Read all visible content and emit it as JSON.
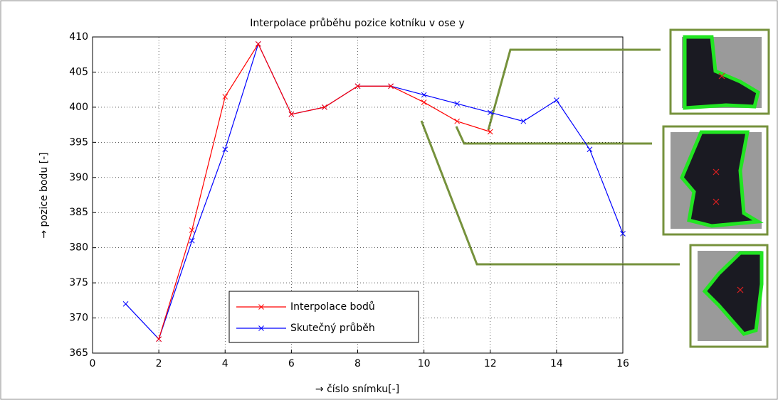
{
  "chart_data": {
    "type": "line",
    "title": "Interpolace průběhu pozice kotníku v ose y",
    "xlabel": "→ číslo snímku[-]",
    "ylabel": "→ pozice bodu [-]",
    "x": [
      1,
      2,
      3,
      4,
      5,
      6,
      7,
      8,
      9,
      10,
      11,
      12,
      13,
      14,
      15,
      16
    ],
    "series": [
      {
        "name": "Interpolace bodů",
        "color": "#ff0000",
        "values": [
          null,
          367,
          382.5,
          401.5,
          409,
          399,
          400,
          403,
          403,
          400.7,
          398,
          396.5,
          null,
          null,
          null,
          null
        ]
      },
      {
        "name": "Skutečný průběh",
        "color": "#0000ff",
        "values": [
          372,
          367,
          381,
          394,
          409,
          399,
          400,
          403,
          403,
          401.75,
          400.5,
          399.25,
          398,
          401,
          394,
          382
        ]
      }
    ],
    "xlim": [
      0,
      16
    ],
    "xticks": [
      0,
      2,
      4,
      6,
      8,
      10,
      12,
      14,
      16
    ],
    "ylim": [
      365,
      410
    ],
    "yticks": [
      365,
      370,
      375,
      380,
      385,
      390,
      395,
      400,
      405,
      410
    ],
    "grid": true
  }
}
